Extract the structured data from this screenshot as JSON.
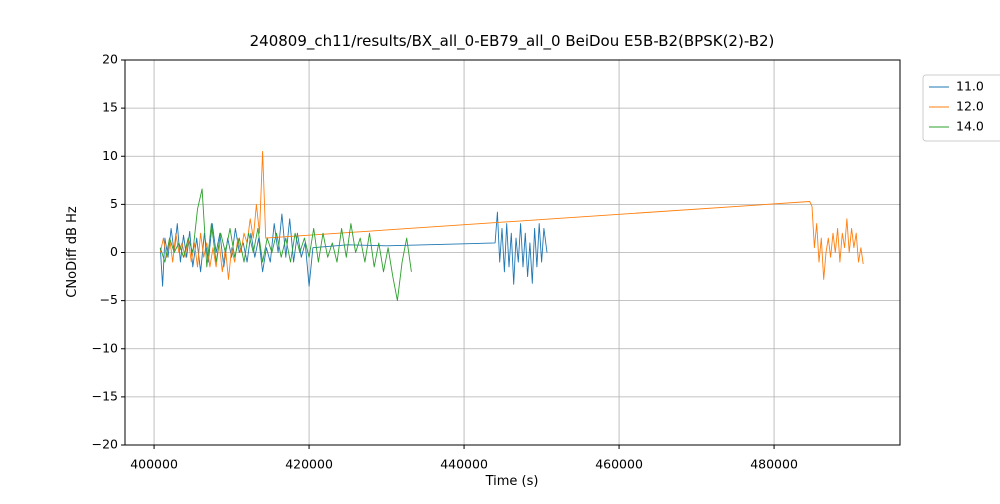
{
  "chart_data": {
    "type": "line",
    "title": "240809_ch11/results/BX_all_0-EB79_all_0 BeiDou E5B-B2(BPSK(2)-B2)",
    "x_label": "Time (s)",
    "y_label": "CNoDiff dB Hz",
    "xlim": [
      396250,
      496250
    ],
    "ylim": [
      -20,
      20
    ],
    "xticks": [
      400000,
      420000,
      440000,
      460000,
      480000
    ],
    "yticks": [
      {
        "value": -20,
        "label": "−20"
      },
      {
        "value": -15,
        "label": "−15"
      },
      {
        "value": -10,
        "label": "−10"
      },
      {
        "value": -5,
        "label": "−5"
      },
      0,
      5,
      10,
      15,
      20
    ],
    "grid": true,
    "legend": "outside-upper-right",
    "series": [
      {
        "name": "11.0",
        "color": "#1f77b4",
        "x": [
          400800,
          401100,
          401400,
          401800,
          402200,
          402600,
          403000,
          403400,
          403800,
          404200,
          404600,
          405000,
          405500,
          406000,
          406500,
          407000,
          407500,
          408000,
          408500,
          409000,
          409500,
          410000,
          410500,
          411000,
          411500,
          412000,
          412500,
          413000,
          413500,
          414000,
          414500,
          415000,
          415500,
          416000,
          416500,
          417000,
          417500,
          418000,
          418500,
          419000,
          419500,
          420000,
          420500,
          425000,
          430000,
          435000,
          440000,
          444000,
          444300,
          444600,
          444900,
          445200,
          445500,
          445800,
          446100,
          446400,
          446700,
          447000,
          447300,
          447600,
          447900,
          448200,
          448500,
          448800,
          449100,
          449400,
          449700,
          450000,
          450300,
          450700
        ],
        "values": [
          0.5,
          -3.5,
          1.5,
          -0.5,
          2.5,
          0,
          3,
          -1,
          1.8,
          -0.5,
          2.2,
          -1.5,
          1.5,
          -2,
          2,
          -1,
          3,
          0,
          2,
          -1.5,
          1.5,
          -0.5,
          2.5,
          0,
          1,
          -1,
          2,
          -0.5,
          1.5,
          -2,
          0.5,
          -1,
          3,
          0,
          4,
          -0.5,
          3.5,
          -1,
          2,
          -0.5,
          1,
          -3.5,
          0.5,
          0.8,
          0.7,
          0.8,
          0.9,
          1.0,
          4.2,
          -1,
          2.5,
          -2,
          3,
          -1.5,
          2,
          -3.3,
          1.5,
          -1,
          3,
          -1.5,
          2,
          -2.5,
          1,
          -3.2,
          2.5,
          -1.5,
          3,
          -1,
          2.5,
          0
        ]
      },
      {
        "name": "12.0",
        "color": "#ff7f0e",
        "x": [
          400800,
          401200,
          401600,
          402000,
          402400,
          402800,
          403200,
          403600,
          404000,
          404400,
          404800,
          405200,
          405600,
          406000,
          406400,
          406800,
          407200,
          407600,
          408000,
          408400,
          408800,
          409200,
          409600,
          410000,
          410400,
          410800,
          411200,
          411600,
          412000,
          412400,
          412800,
          413200,
          413600,
          414000,
          414400,
          484600,
          484900,
          485200,
          485500,
          485800,
          486100,
          486400,
          486700,
          487000,
          487300,
          487600,
          487900,
          488200,
          488500,
          488800,
          489100,
          489400,
          489700,
          490000,
          490300,
          490600,
          490900,
          491200,
          491500
        ],
        "values": [
          0,
          1.5,
          -0.5,
          1.5,
          -1,
          2,
          0,
          1,
          -0.5,
          1.5,
          -1,
          1,
          -1.5,
          2,
          -0.5,
          1,
          -1.5,
          0.5,
          -1.5,
          1,
          -2,
          0.5,
          -2.8,
          0.5,
          -1,
          1.5,
          0,
          2,
          1,
          3.5,
          1.5,
          5,
          2,
          10.5,
          1.5,
          5.3,
          4.8,
          0.5,
          3,
          -1,
          1.5,
          -2.8,
          0,
          1.5,
          -0.5,
          2,
          0,
          2.5,
          -1,
          2,
          0.5,
          3.5,
          0,
          2.5,
          0.5,
          2,
          -1,
          0.5,
          -1.2
        ]
      },
      {
        "name": "14.0",
        "color": "#2ca02c",
        "x": [
          400800,
          401400,
          402000,
          402600,
          403200,
          403800,
          404400,
          405000,
          405600,
          406200,
          406800,
          407400,
          408000,
          408600,
          409200,
          409800,
          410400,
          411000,
          411600,
          412200,
          412800,
          413400,
          414000,
          414600,
          415200,
          415800,
          416400,
          417000,
          417600,
          418200,
          418800,
          419400,
          420000,
          420600,
          421200,
          421800,
          422400,
          423000,
          423600,
          424200,
          424800,
          425400,
          426000,
          426600,
          427200,
          427800,
          428400,
          429000,
          429600,
          430200,
          430800,
          431400,
          432000,
          432600,
          433200
        ],
        "values": [
          0.5,
          -1,
          1.5,
          0,
          1,
          -0.5,
          1.5,
          0,
          4.5,
          6.6,
          -1.5,
          3,
          -1,
          2,
          0,
          2.5,
          -0.5,
          1.5,
          -1,
          2,
          0,
          2.5,
          -1,
          1.5,
          0,
          2,
          -0.5,
          1.5,
          -1,
          2,
          0,
          1.5,
          -0.5,
          2.5,
          -1,
          2,
          -0.5,
          1,
          -1,
          2.5,
          -0.5,
          3,
          0,
          1.5,
          -1,
          2,
          -1.5,
          1,
          -2,
          0.5,
          -2.5,
          -5,
          -1,
          1.5,
          -2
        ]
      }
    ]
  }
}
